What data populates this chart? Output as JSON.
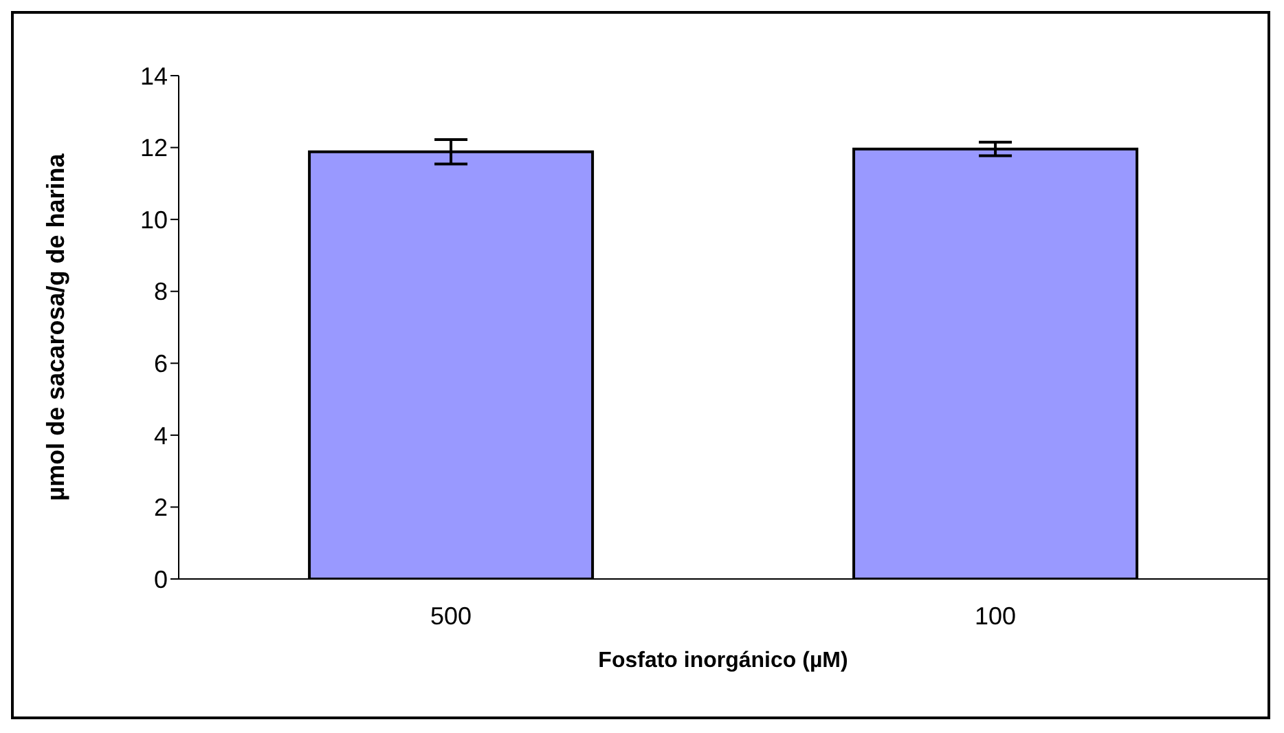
{
  "chart_data": {
    "type": "bar",
    "xlabel": "Fosfato inorgánico (µM)",
    "ylabel": "µmol de sacarosa/g de harina",
    "categories": [
      "500",
      "100"
    ],
    "values": [
      11.88,
      11.96
    ],
    "errors": [
      0.34,
      0.19
    ],
    "color": "#9999ff",
    "ylim": [
      0,
      14
    ],
    "yticks": [
      0,
      2,
      4,
      6,
      8,
      10,
      12,
      14
    ],
    "grid": false,
    "legend": false
  }
}
